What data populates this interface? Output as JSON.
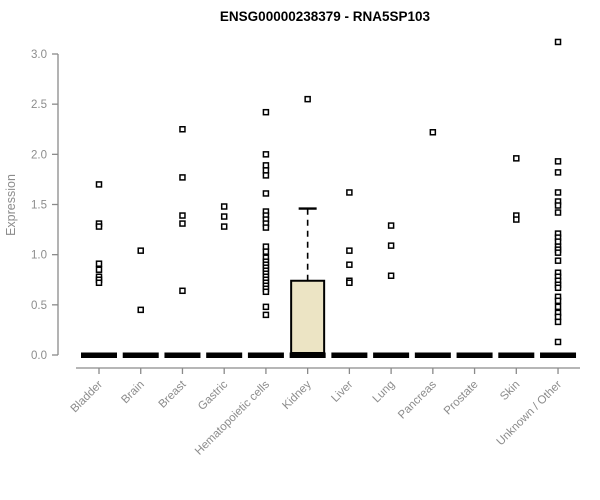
{
  "chart_data": {
    "type": "boxplot",
    "title": "ENSG00000238379 - RNA5SP103",
    "ylabel": "Expression",
    "xlabel": "",
    "ylim": [
      0,
      3.0
    ],
    "ytick_labels": [
      "0.0",
      "0.5",
      "1.0",
      "1.5",
      "2.0",
      "2.5",
      "3.0"
    ],
    "grid": false,
    "legend": "none",
    "categories": [
      "Bladder",
      "Brain",
      "Breast",
      "Gastric",
      "Hematopoietic cells",
      "Kidney",
      "Liver",
      "Lung",
      "Pancreas",
      "Prostate",
      "Skin",
      "Unknown / Other"
    ],
    "series": [
      {
        "category": "Bladder",
        "zero_bar": true,
        "points": [
          1.7,
          1.31,
          1.28,
          0.91,
          0.85,
          0.78,
          0.75,
          0.72
        ]
      },
      {
        "category": "Brain",
        "zero_bar": true,
        "points": [
          1.04,
          0.45
        ]
      },
      {
        "category": "Breast",
        "zero_bar": true,
        "points": [
          2.25,
          1.77,
          1.39,
          1.31,
          0.64
        ]
      },
      {
        "category": "Gastric",
        "zero_bar": true,
        "points": [
          1.48,
          1.38,
          1.28
        ]
      },
      {
        "category": "Hematopoietic cells",
        "zero_bar": true,
        "points": [
          2.42,
          2.0,
          1.89,
          1.84,
          1.79,
          1.61,
          1.43,
          1.39,
          1.35,
          1.31,
          1.27,
          1.08,
          1.03,
          0.97,
          0.93,
          0.9,
          0.87,
          0.84,
          0.81,
          0.78,
          0.75,
          0.72,
          0.69,
          0.66,
          0.63,
          0.48,
          0.4
        ]
      },
      {
        "category": "Kidney",
        "zero_bar": true,
        "points": [
          2.55
        ],
        "box": {
          "q1": 0.02,
          "median": 0.0,
          "q3": 0.74,
          "whisker_high": 1.46,
          "whisker_low": 0.0
        }
      },
      {
        "category": "Liver",
        "zero_bar": true,
        "points": [
          1.62,
          1.04,
          0.9,
          0.74,
          0.72
        ]
      },
      {
        "category": "Lung",
        "zero_bar": true,
        "points": [
          1.29,
          1.09,
          0.79
        ]
      },
      {
        "category": "Pancreas",
        "zero_bar": true,
        "points": [
          2.22
        ]
      },
      {
        "category": "Prostate",
        "zero_bar": true,
        "points": []
      },
      {
        "category": "Skin",
        "zero_bar": true,
        "points": [
          1.96,
          1.39,
          1.35
        ]
      },
      {
        "category": "Unknown / Other",
        "zero_bar": true,
        "points": [
          3.12,
          1.93,
          1.82,
          1.62,
          1.53,
          1.49,
          1.42,
          1.21,
          1.17,
          1.13,
          1.08,
          1.05,
          1.02,
          0.94,
          0.82,
          0.78,
          0.74,
          0.7,
          0.67,
          0.58,
          0.54,
          0.48,
          0.42,
          0.38,
          0.33,
          0.13
        ]
      }
    ],
    "colors": {
      "title": "#000000",
      "axis": "#8a8a8a",
      "tick_label": "#8c8c8c",
      "box_fill": "#ece4c4",
      "box_stroke": "#000000",
      "zero_bar": "#000000",
      "point_stroke": "#000000",
      "point_fill": "#ffffff"
    }
  }
}
